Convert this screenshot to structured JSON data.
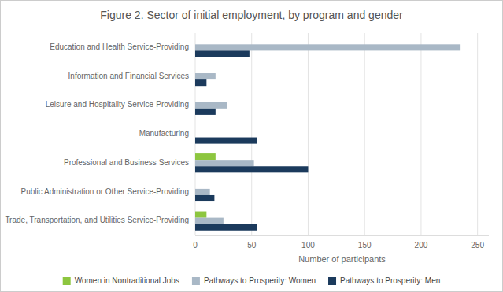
{
  "chart_data": {
    "type": "bar",
    "orientation": "horizontal",
    "title": "Figure 2. Sector of initial employment, by program and gender",
    "categories": [
      "Trade, Transportation, and Utilities Service-Providing",
      "Public Administration or Other Service-Providing",
      "Professional and Business Services",
      "Manufacturing",
      "Leisure and Hospitality Service-Providing",
      "Information and Financial Services",
      "Education and Health Service-Providing"
    ],
    "series": [
      {
        "name": "Women in Nontraditional Jobs",
        "color": "#8dc63f",
        "values": [
          10,
          0,
          18,
          0,
          0,
          0,
          0
        ]
      },
      {
        "name": "Pathways to Prosperity: Women",
        "color": "#a9b8c6",
        "values": [
          25,
          13,
          52,
          0,
          28,
          18,
          235
        ]
      },
      {
        "name": "Pathways to Prosperity: Men",
        "color": "#1b3a5c",
        "values": [
          55,
          17,
          100,
          55,
          18,
          10,
          48
        ]
      }
    ],
    "xlabel": "Number of participants",
    "xlim": [
      0,
      260
    ],
    "xticks": [
      0,
      50,
      100,
      150,
      200,
      250
    ],
    "grid": true,
    "legend": "bottom"
  }
}
